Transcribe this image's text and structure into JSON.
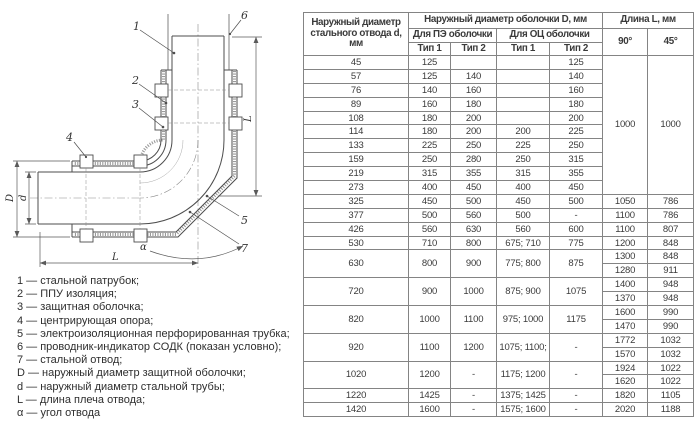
{
  "colors": {
    "line": "#4d4d4d",
    "dim_line": "#5a5a5a",
    "table_border": "#848484",
    "text": "#3a3a3a"
  },
  "drawing": {
    "callouts": {
      "c1": "1",
      "c2": "2",
      "c3": "3",
      "c4": "4",
      "c5": "5",
      "c6": "6",
      "c7": "7"
    },
    "dims": {
      "D": "D",
      "d": "d",
      "L": "L",
      "alpha": "α"
    },
    "legend": [
      "1 — стальной патрубок;",
      "2 — ППУ изоляция;",
      "3 — защитная оболочка;",
      "4 — центрирующая опора;",
      "5 — электроизоляционная перфорированная трубка;",
      "6 — проводник-индикатор СОДК (показан условно);",
      "7 — стальной отвод;",
      "D — наружный диаметр защитной оболочки;",
      "d — наружный диаметр стальной трубы;",
      "L — длина плеча отвода;",
      "α — угол отвода"
    ]
  },
  "table": {
    "header": {
      "col_d": "Наружный диаметр стального отвода d, мм",
      "group_D": "Наружный диаметр оболочки D, мм",
      "group_pe": "Для ПЭ оболочки",
      "group_oc": "Для ОЦ оболочки",
      "tip1": "Тип 1",
      "tip2": "Тип 2",
      "group_L": "Длина L, мм",
      "deg90": "90°",
      "deg45": "45°"
    },
    "body": [
      [
        [
          "45"
        ],
        [
          "125"
        ],
        [
          ""
        ],
        [
          ""
        ],
        [
          "125"
        ],
        [
          "1000",
          10
        ],
        [
          "1000",
          10
        ]
      ],
      [
        [
          "57"
        ],
        [
          "125"
        ],
        [
          "140"
        ],
        [
          ""
        ],
        [
          "140"
        ]
      ],
      [
        [
          "76"
        ],
        [
          "140"
        ],
        [
          "160"
        ],
        [
          ""
        ],
        [
          "160"
        ]
      ],
      [
        [
          "89"
        ],
        [
          "160"
        ],
        [
          "180"
        ],
        [
          ""
        ],
        [
          "180"
        ]
      ],
      [
        [
          "108"
        ],
        [
          "180"
        ],
        [
          "200"
        ],
        [
          ""
        ],
        [
          "200"
        ]
      ],
      [
        [
          "114"
        ],
        [
          "180"
        ],
        [
          "200"
        ],
        [
          "200"
        ],
        [
          "225"
        ]
      ],
      [
        [
          "133"
        ],
        [
          "225"
        ],
        [
          "250"
        ],
        [
          "225"
        ],
        [
          "250"
        ]
      ],
      [
        [
          "159"
        ],
        [
          "250"
        ],
        [
          "280"
        ],
        [
          "250"
        ],
        [
          "315"
        ]
      ],
      [
        [
          "219"
        ],
        [
          "315"
        ],
        [
          "355"
        ],
        [
          "315"
        ],
        [
          "355"
        ]
      ],
      [
        [
          "273"
        ],
        [
          "400"
        ],
        [
          "450"
        ],
        [
          "400"
        ],
        [
          "450"
        ]
      ],
      [
        [
          "325"
        ],
        [
          "450"
        ],
        [
          "500"
        ],
        [
          "450"
        ],
        [
          "500"
        ],
        [
          "1050"
        ],
        [
          "786"
        ]
      ],
      [
        [
          "377"
        ],
        [
          "500"
        ],
        [
          "560"
        ],
        [
          "500"
        ],
        [
          "-"
        ],
        [
          "1100"
        ],
        [
          "786"
        ]
      ],
      [
        [
          "426"
        ],
        [
          "560"
        ],
        [
          "630"
        ],
        [
          "560"
        ],
        [
          "600"
        ],
        [
          "1100"
        ],
        [
          "807"
        ]
      ],
      [
        [
          "530"
        ],
        [
          "710"
        ],
        [
          "800"
        ],
        [
          "675; 710"
        ],
        [
          "775"
        ],
        [
          "1200"
        ],
        [
          "848"
        ]
      ],
      [
        [
          "630",
          2
        ],
        [
          "800",
          2
        ],
        [
          "900",
          2
        ],
        [
          "775; 800",
          2
        ],
        [
          "875",
          2
        ],
        [
          "1300"
        ],
        [
          "848"
        ]
      ],
      [
        [
          "1280"
        ],
        [
          "911"
        ]
      ],
      [
        [
          "720",
          2
        ],
        [
          "900",
          2
        ],
        [
          "1000",
          2
        ],
        [
          "875; 900",
          2
        ],
        [
          "1075",
          2
        ],
        [
          "1400"
        ],
        [
          "948"
        ]
      ],
      [
        [
          "1370"
        ],
        [
          "948"
        ]
      ],
      [
        [
          "820",
          2
        ],
        [
          "1000",
          2
        ],
        [
          "1100",
          2
        ],
        [
          "975; 1000",
          2
        ],
        [
          "1175",
          2
        ],
        [
          "1600"
        ],
        [
          "990"
        ]
      ],
      [
        [
          "1470"
        ],
        [
          "990"
        ]
      ],
      [
        [
          "920",
          2
        ],
        [
          "1100",
          2
        ],
        [
          "1200",
          2
        ],
        [
          "1075; 1100;",
          2
        ],
        [
          "-",
          2
        ],
        [
          "1772"
        ],
        [
          "1032"
        ]
      ],
      [
        [
          "1570"
        ],
        [
          "1032"
        ]
      ],
      [
        [
          "1020",
          2
        ],
        [
          "1200",
          2
        ],
        [
          "-",
          2
        ],
        [
          "1175; 1200",
          2
        ],
        [
          "-",
          2
        ],
        [
          "1924"
        ],
        [
          "1022"
        ]
      ],
      [
        [
          "1620"
        ],
        [
          "1022"
        ]
      ],
      [
        [
          "1220"
        ],
        [
          "1425"
        ],
        [
          "-"
        ],
        [
          "1375; 1425"
        ],
        [
          "-"
        ],
        [
          "1820"
        ],
        [
          "1105"
        ]
      ],
      [
        [
          "1420"
        ],
        [
          "1600"
        ],
        [
          "-"
        ],
        [
          "1575; 1600"
        ],
        [
          "-"
        ],
        [
          "2020"
        ],
        [
          "1188"
        ]
      ]
    ]
  }
}
